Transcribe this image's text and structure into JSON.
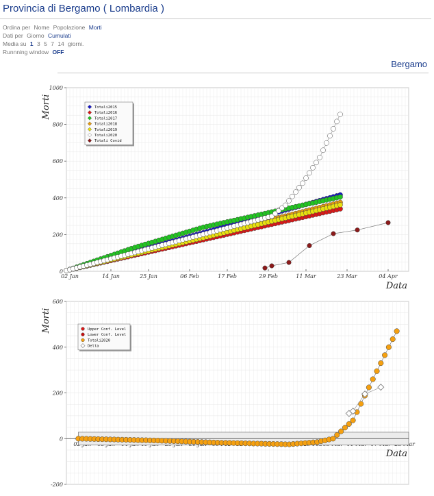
{
  "page": {
    "title": "Provincia di Bergamo ( Lombardia )",
    "section_title": "Bergamo"
  },
  "options": {
    "sort": {
      "label": "Ordina per",
      "items": [
        {
          "label": "Nome",
          "active": false
        },
        {
          "label": "Popolazione",
          "active": false
        },
        {
          "label": "Morti",
          "active": true
        }
      ]
    },
    "data_by": {
      "label": "Dati per",
      "items": [
        {
          "label": "Giorno",
          "active": false
        },
        {
          "label": "Cumulati",
          "active": true
        }
      ]
    },
    "mean": {
      "label": "Media su",
      "values": [
        "1",
        "3",
        "5",
        "7",
        "14"
      ],
      "selected": "1",
      "suffix": "giorni."
    },
    "running_window": {
      "label": "Runnning window",
      "value": "OFF"
    }
  },
  "colors": {
    "totali2015": "#1515c8",
    "totali2016": "#d81818",
    "totali2017": "#22c422",
    "totali2018": "#e69a10",
    "totali2019": "#e8e010",
    "totali2020": "#ffffff",
    "covid": "#8b1a1a",
    "upper": "#d81818",
    "lower": "#c41010",
    "orange": "#f5a010"
  },
  "chart_data": [
    {
      "type": "line",
      "ylabel": "Morti",
      "xlabel": "Data",
      "ylim": [
        0,
        1000
      ],
      "yticks": [
        0,
        200,
        400,
        600,
        800,
        1000
      ],
      "xticks": [
        "02 Jan",
        "14 Jan",
        "25 Jan",
        "06 Feb",
        "17 Feb",
        "29 Feb",
        "11 Mar",
        "23 Mar",
        "04 Apr"
      ],
      "x_range": [
        "2020-01-01",
        "2020-04-10"
      ],
      "grid": true,
      "legend_position": "top-left",
      "series": [
        {
          "name": "Totali2015",
          "color_key": "totali2015",
          "start": "2020-01-01",
          "end": "2020-03-21",
          "values": [
            4,
            416
          ]
        },
        {
          "name": "Totali2016",
          "color_key": "totali2016",
          "start": "2020-01-01",
          "end": "2020-03-21",
          "values": [
            4,
            340
          ]
        },
        {
          "name": "Totali2017",
          "color_key": "totali2017",
          "start": "2020-01-01",
          "end": "2020-03-21",
          "values": [
            4,
            130,
            240,
            323,
            405
          ]
        },
        {
          "name": "Totali2018",
          "color_key": "totali2018",
          "start": "2020-01-01",
          "end": "2020-03-21",
          "values": [
            4,
            375
          ]
        },
        {
          "name": "Totali2019",
          "color_key": "totali2019",
          "start": "2020-01-01",
          "end": "2020-03-21",
          "values": [
            4,
            362
          ]
        },
        {
          "name": "Totali2020",
          "color_key": "totali2020",
          "start": "2020-01-01",
          "end": "2020-03-21",
          "breakpoints": [
            [
              "2020-01-01",
              4
            ],
            [
              "2020-03-01",
              300
            ],
            [
              "2020-03-05",
              360
            ],
            [
              "2020-03-10",
              480
            ],
            [
              "2020-03-15",
              620
            ],
            [
              "2020-03-21",
              855
            ]
          ]
        },
        {
          "name": "Totali Covid",
          "color_key": "covid",
          "markers": "sparse",
          "points": [
            [
              "2020-02-28",
              18
            ],
            [
              "2020-03-01",
              30
            ],
            [
              "2020-03-06",
              48
            ],
            [
              "2020-03-12",
              140
            ],
            [
              "2020-03-19",
              205
            ],
            [
              "2020-03-26",
              225
            ],
            [
              "2020-04-04",
              265
            ]
          ]
        }
      ]
    },
    {
      "type": "line",
      "ylabel": "Morti",
      "xlabel": "Data",
      "ylim": [
        -200,
        600
      ],
      "yticks": [
        -200,
        0,
        200,
        400,
        600
      ],
      "xticks": [
        "02 Jan",
        "08 Jan",
        "14 Jan",
        "19 Jan",
        "25 Jan",
        "31 Jan",
        "06 Feb",
        "12 Feb",
        "17 Feb",
        "23 Feb",
        "29 Feb",
        "05 Mar",
        "11 Mar",
        "17 Mar",
        "23 Mar"
      ],
      "x_range": [
        "2019-12-29",
        "2020-03-24"
      ],
      "grid": true,
      "legend_position": "top-left",
      "series": [
        {
          "name": "Upper Conf. Level",
          "color_key": "upper",
          "legend_only": true
        },
        {
          "name": "Lower Conf. Level",
          "color_key": "lower",
          "legend_only": true
        },
        {
          "name": "Totali2020",
          "color_key": "orange",
          "start": "2020-01-01",
          "end": "2020-03-21",
          "breakpoints": [
            [
              "2020-01-01",
              0
            ],
            [
              "2020-01-20",
              -8
            ],
            [
              "2020-02-06",
              -18
            ],
            [
              "2020-02-23",
              -25
            ],
            [
              "2020-03-01",
              -15
            ],
            [
              "2020-03-05",
              0
            ],
            [
              "2020-03-10",
              80
            ],
            [
              "2020-03-15",
              260
            ],
            [
              "2020-03-21",
              470
            ]
          ]
        },
        {
          "name": "Delta",
          "color_key": "totali2020",
          "markers": "diamond",
          "points": [
            [
              "2020-03-09",
              110
            ],
            [
              "2020-03-10",
              120
            ],
            [
              "2020-03-13",
              195
            ],
            [
              "2020-03-17",
              225
            ]
          ]
        }
      ],
      "confidence_band": {
        "upper": 28,
        "lower": -28
      }
    }
  ]
}
